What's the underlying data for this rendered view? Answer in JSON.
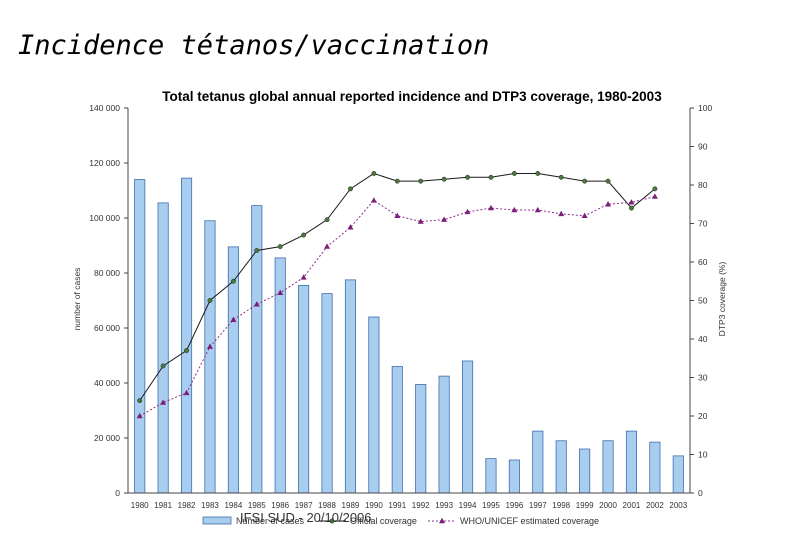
{
  "slide": {
    "title": "Incidence tétanos/vaccination",
    "footer": "IFSI SUD - 20/10/2006"
  },
  "colors": {
    "bar_fill": "#a9cdef",
    "bar_stroke": "#3f6fa8",
    "official_line": "#1a1a1a",
    "official_marker": "#4d7a3a",
    "who_line": "#8c2f8c",
    "who_marker": "#7a1f7a"
  },
  "chart_data": {
    "type": "bar",
    "title": "Total tetanus global annual reported incidence and  DTP3 coverage, 1980-2003",
    "ylabel": "number of cases",
    "y2label": "DTP3 coverage (%)",
    "ylim": [
      0,
      140000
    ],
    "y2lim": [
      0,
      100
    ],
    "yticks": [
      "0",
      "20 000",
      "40 000",
      "60 000",
      "80 000",
      "100 000",
      "120 000",
      "140 000"
    ],
    "y2ticks": [
      "0",
      "10",
      "20",
      "30",
      "40",
      "50",
      "60",
      "70",
      "80",
      "90",
      "100"
    ],
    "categories": [
      "1980",
      "1981",
      "1982",
      "1983",
      "1984",
      "1985",
      "1986",
      "1987",
      "1988",
      "1989",
      "1990",
      "1991",
      "1992",
      "1993",
      "1994",
      "1995",
      "1996",
      "1997",
      "1998",
      "1999",
      "2000",
      "2001",
      "2002",
      "2003"
    ],
    "series": [
      {
        "name": "Number of cases",
        "axis": "left",
        "kind": "bar",
        "values": [
          114000,
          105500,
          114500,
          99000,
          89500,
          104500,
          85500,
          75500,
          72500,
          77500,
          64000,
          46000,
          39500,
          42500,
          48000,
          12500,
          12000,
          22500,
          19000,
          16000,
          19000,
          22500,
          18500,
          13500
        ]
      },
      {
        "name": "Official coverage",
        "axis": "right",
        "kind": "line",
        "values": [
          24,
          33,
          37,
          50,
          55,
          63,
          64,
          67,
          71,
          79,
          83,
          81,
          81,
          81.5,
          82,
          82,
          83,
          83,
          82,
          81,
          81,
          74,
          79,
          null
        ]
      },
      {
        "name": "WHO/UNICEF estimated coverage",
        "axis": "right",
        "kind": "line",
        "values": [
          20,
          23.5,
          26,
          38,
          45,
          49,
          52,
          56,
          64,
          69,
          76,
          72,
          70.5,
          71,
          73,
          74,
          73.5,
          73.5,
          72.5,
          72,
          75,
          75.5,
          77,
          null
        ]
      }
    ],
    "legend_position": "bottom"
  }
}
